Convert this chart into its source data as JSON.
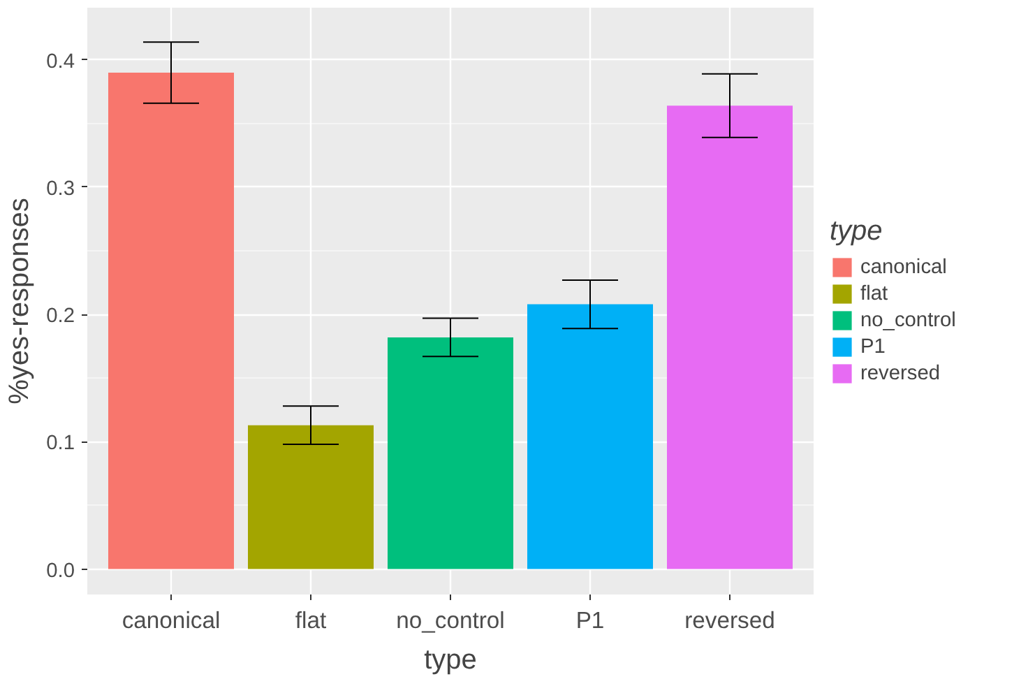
{
  "chart_data": {
    "type": "bar",
    "xlabel": "type",
    "ylabel": "%yes-responses",
    "legend_title": "type",
    "categories": [
      "canonical",
      "flat",
      "no_control",
      "P1",
      "reversed"
    ],
    "series": [
      {
        "name": "canonical",
        "color": "#f8766d",
        "values": [
          0.39,
          null,
          null,
          null,
          null
        ],
        "errors": [
          0.024,
          null,
          null,
          null,
          null
        ]
      },
      {
        "name": "flat",
        "color": "#a3a500",
        "values": [
          null,
          0.113,
          null,
          null,
          null
        ],
        "errors": [
          null,
          0.015,
          null,
          null,
          null
        ]
      },
      {
        "name": "no_control",
        "color": "#00bf7d",
        "values": [
          null,
          null,
          0.182,
          null,
          null
        ],
        "errors": [
          null,
          null,
          0.015,
          null,
          null
        ]
      },
      {
        "name": "P1",
        "color": "#00b0f6",
        "values": [
          null,
          null,
          null,
          0.208,
          null
        ],
        "errors": [
          null,
          null,
          null,
          0.019,
          null
        ]
      },
      {
        "name": "reversed",
        "color": "#e76bf3",
        "values": [
          null,
          null,
          null,
          null,
          0.364
        ],
        "errors": [
          null,
          null,
          null,
          null,
          0.025
        ]
      }
    ],
    "ylim": [
      -0.02,
      0.441
    ],
    "yticks": [
      {
        "value": 0,
        "label": "0.0"
      },
      0.1,
      0.2,
      0.3,
      0.4
    ],
    "grid": true,
    "legend": "right"
  }
}
